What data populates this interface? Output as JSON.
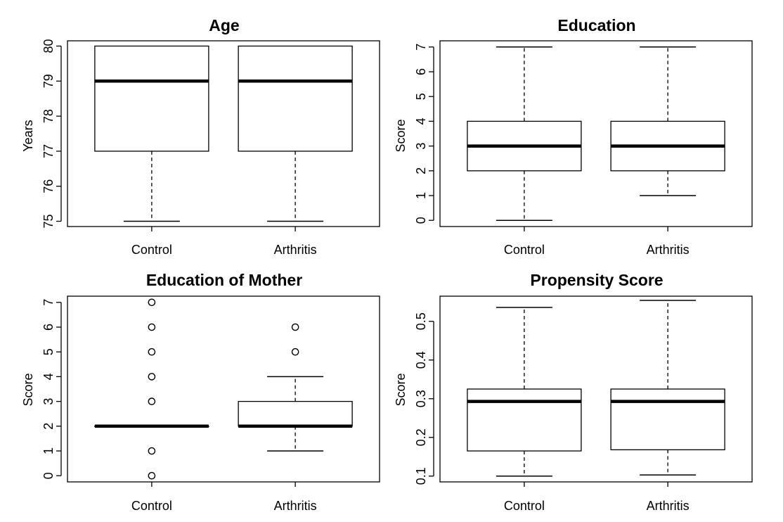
{
  "figure": {
    "background": "#ffffff",
    "ink": "#000000"
  },
  "chart_data": [
    {
      "type": "boxplot",
      "title": "Age",
      "xlabel": "",
      "ylabel": "Years",
      "categories": [
        "Control",
        "Arthritis"
      ],
      "ylim": [
        74.85,
        80.15
      ],
      "yticks": [
        75,
        76,
        77,
        78,
        79,
        80
      ],
      "grid": false,
      "boxes": [
        {
          "name": "Control",
          "min": 75,
          "q1": 77,
          "median": 79,
          "q3": 80,
          "max": 80,
          "outliers": []
        },
        {
          "name": "Arthritis",
          "min": 75,
          "q1": 77,
          "median": 79,
          "q3": 80,
          "max": 80,
          "outliers": []
        }
      ]
    },
    {
      "type": "boxplot",
      "title": "Education",
      "xlabel": "",
      "ylabel": "Score",
      "categories": [
        "Control",
        "Arthritis"
      ],
      "ylim": [
        -0.25,
        7.25
      ],
      "yticks": [
        0,
        1,
        2,
        3,
        4,
        5,
        6,
        7
      ],
      "grid": false,
      "boxes": [
        {
          "name": "Control",
          "min": 0,
          "q1": 2,
          "median": 3,
          "q3": 4,
          "max": 7,
          "outliers": []
        },
        {
          "name": "Arthritis",
          "min": 1,
          "q1": 2,
          "median": 3,
          "q3": 4,
          "max": 7,
          "outliers": []
        }
      ]
    },
    {
      "type": "boxplot",
      "title": "Education of Mother",
      "xlabel": "",
      "ylabel": "Score",
      "categories": [
        "Control",
        "Arthritis"
      ],
      "ylim": [
        -0.25,
        7.25
      ],
      "yticks": [
        0,
        1,
        2,
        3,
        4,
        5,
        6,
        7
      ],
      "grid": false,
      "boxes": [
        {
          "name": "Control",
          "min": 2,
          "q1": 2,
          "median": 2,
          "q3": 2,
          "max": 2,
          "outliers": [
            0,
            1,
            3,
            4,
            5,
            6,
            7
          ]
        },
        {
          "name": "Arthritis",
          "min": 1,
          "q1": 2,
          "median": 2,
          "q3": 3,
          "max": 4,
          "outliers": [
            5,
            6
          ]
        }
      ]
    },
    {
      "type": "boxplot",
      "title": "Propensity Score",
      "xlabel": "",
      "ylabel": "Score",
      "categories": [
        "Control",
        "Arthritis"
      ],
      "ylim": [
        0.085,
        0.565
      ],
      "yticks": [
        0.1,
        0.2,
        0.3,
        0.4,
        0.5
      ],
      "grid": false,
      "boxes": [
        {
          "name": "Control",
          "min": 0.1,
          "q1": 0.165,
          "median": 0.293,
          "q3": 0.325,
          "max": 0.536,
          "outliers": []
        },
        {
          "name": "Arthritis",
          "min": 0.103,
          "q1": 0.168,
          "median": 0.293,
          "q3": 0.325,
          "max": 0.554,
          "outliers": []
        }
      ]
    }
  ]
}
